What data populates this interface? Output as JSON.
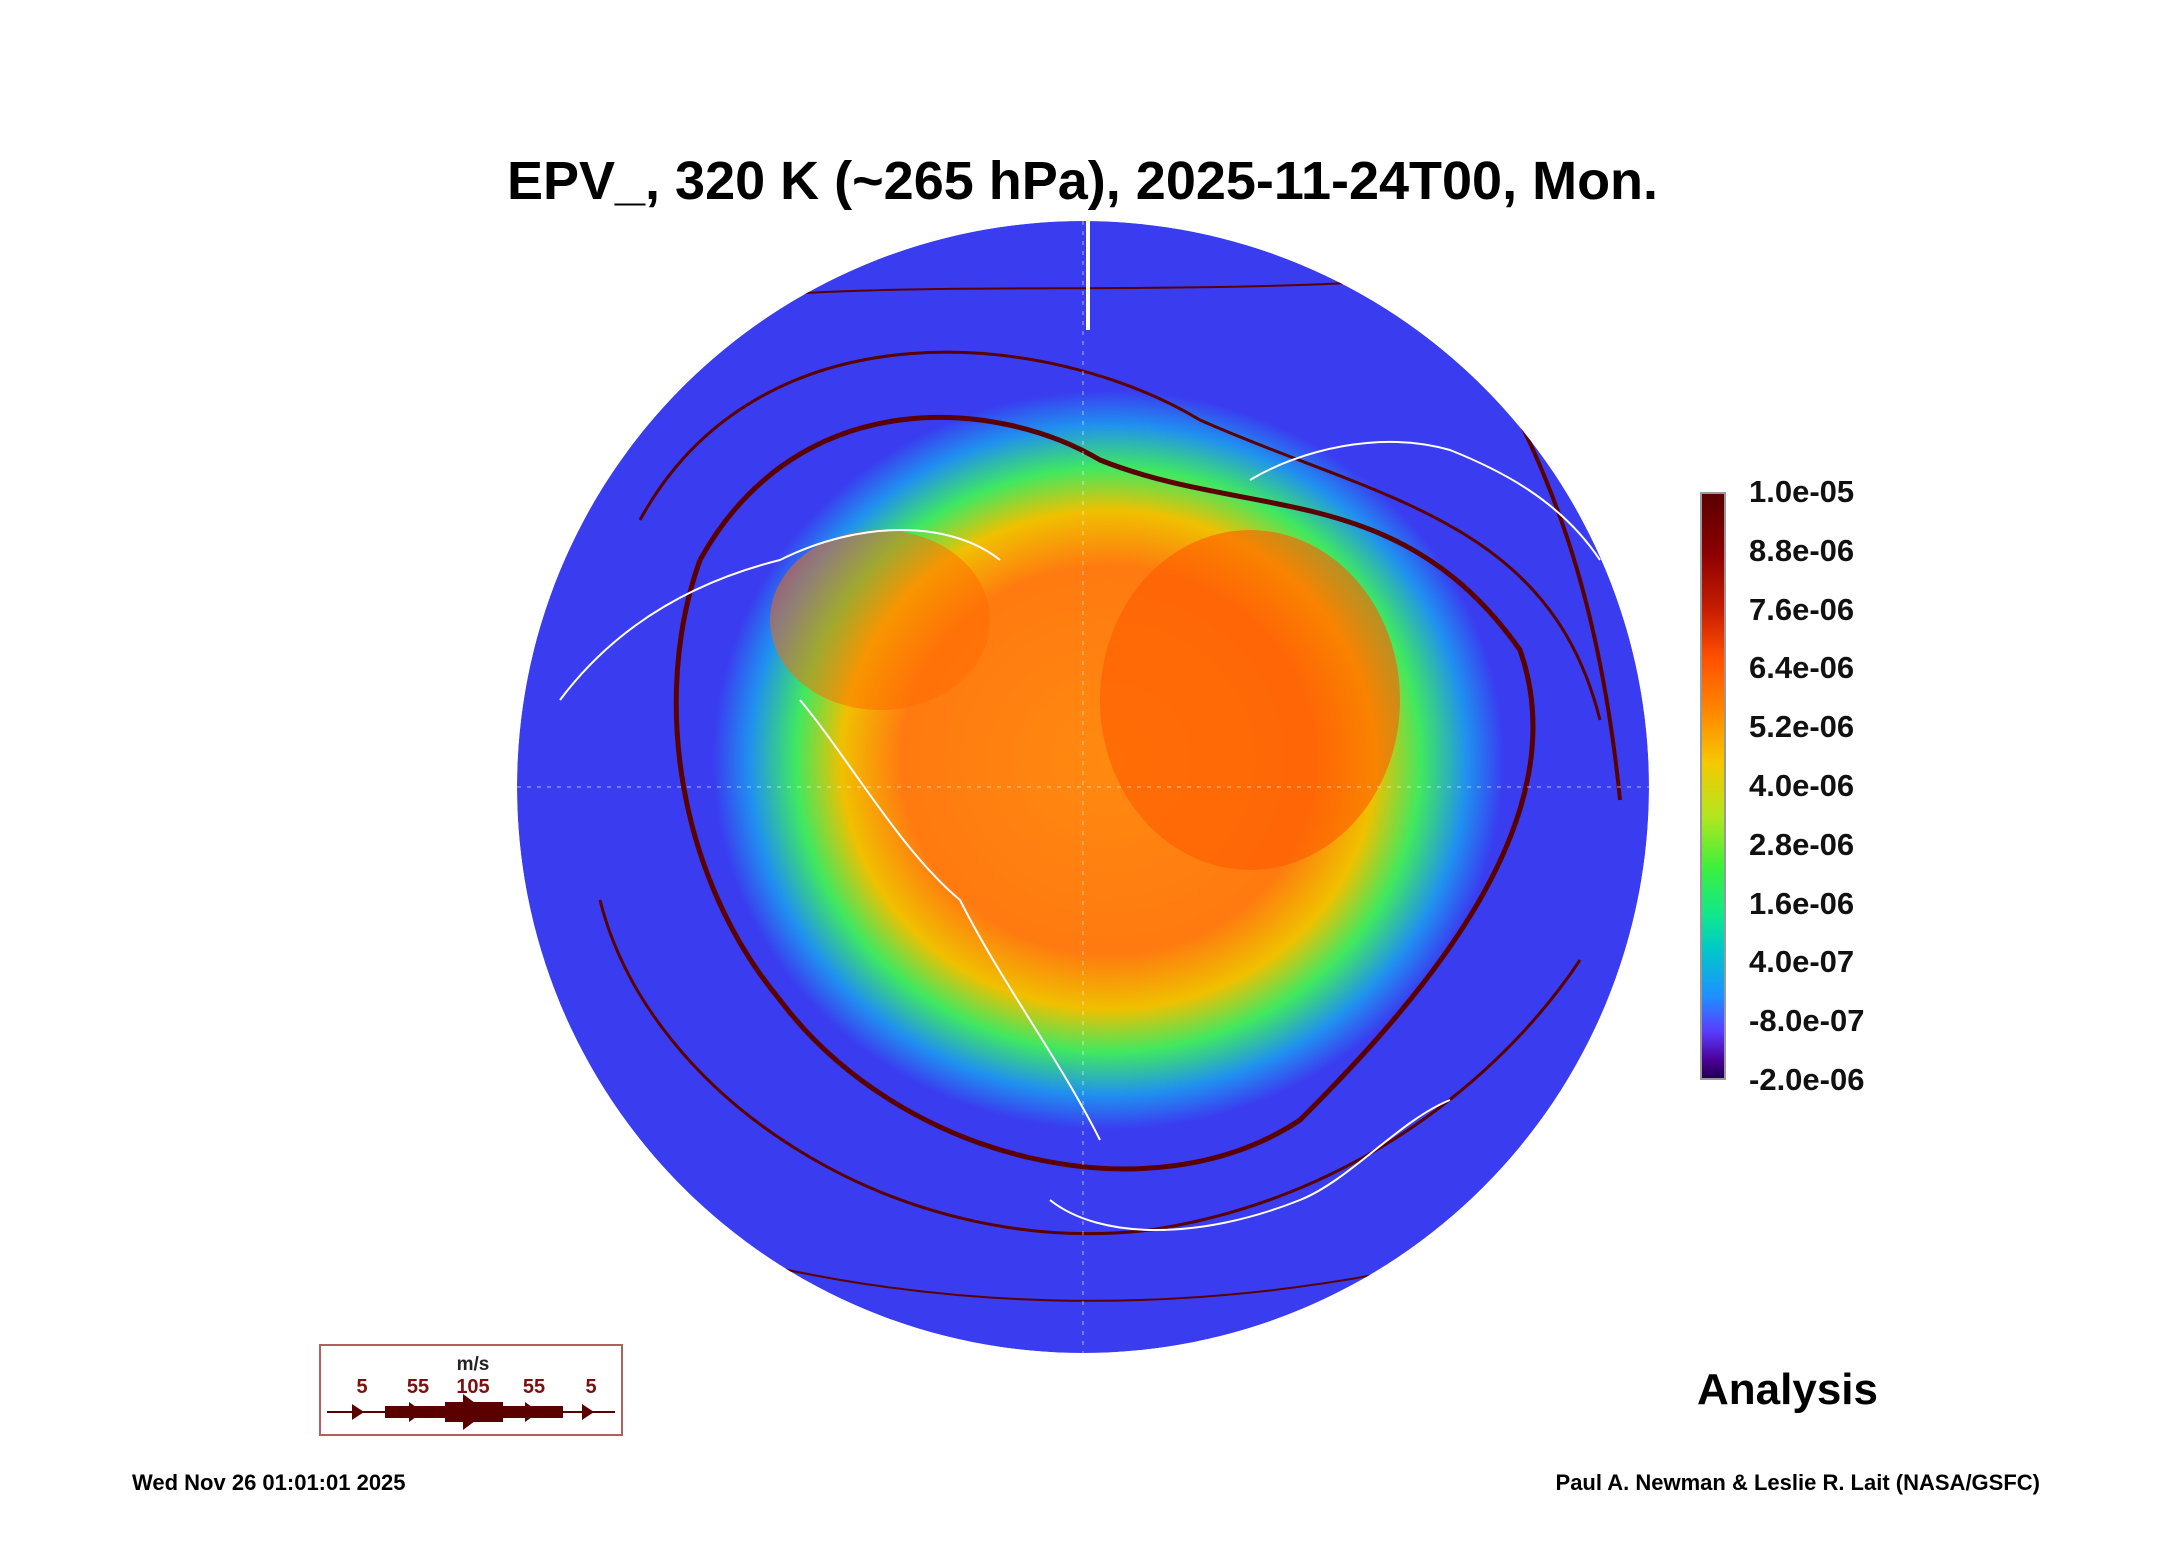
{
  "title": "EPV_, 320 K (~265 hPa), 2025-11-24T00, Mon.",
  "chart_data": {
    "type": "heatmap",
    "projection": "north polar stereographic",
    "variable": "EPV_",
    "title": "EPV_, 320 K (~265 hPa), 2025-11-24T00, Mon.",
    "colorbar": {
      "ticks": [
        "1.0e-05",
        "8.8e-06",
        "7.6e-06",
        "6.4e-06",
        "5.2e-06",
        "4.0e-06",
        "2.8e-06",
        "1.6e-06",
        "4.0e-07",
        "-8.0e-07",
        "-2.0e-06"
      ],
      "range": [
        -2e-06,
        1e-05
      ]
    },
    "wind_legend": {
      "units": "m/s",
      "labels": [
        "5",
        "55",
        "105",
        "55",
        "5"
      ]
    }
  },
  "colors": {
    "streamline": "#5a0000",
    "background_field": "#3a3cf0",
    "coast": "#ffffff"
  },
  "label": "Analysis",
  "footer": {
    "date": "Wed Nov 26 01:01:01 2025",
    "credit": "Paul A. Newman & Leslie R. Lait (NASA/GSFC)"
  }
}
